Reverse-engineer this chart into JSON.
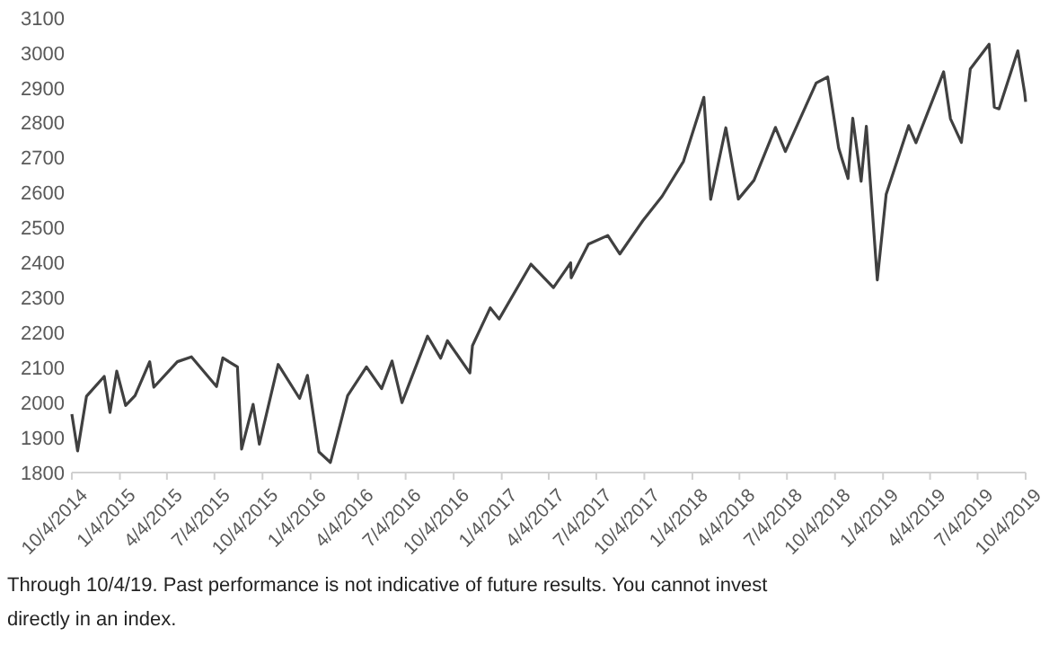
{
  "chart_data": {
    "type": "line",
    "grid": false,
    "marker": "none",
    "line_style": "solid",
    "x": [
      "2014-10-04",
      "2014-10-15",
      "2014-11-01",
      "2014-12-05",
      "2014-12-16",
      "2014-12-29",
      "2015-01-15",
      "2015-02-02",
      "2015-03-02",
      "2015-03-10",
      "2015-04-24",
      "2015-05-21",
      "2015-07-08",
      "2015-07-20",
      "2015-08-17",
      "2015-08-25",
      "2015-09-16",
      "2015-09-28",
      "2015-11-03",
      "2015-12-14",
      "2015-12-29",
      "2016-01-20",
      "2016-02-11",
      "2016-03-15",
      "2016-04-20",
      "2016-05-19",
      "2016-06-08",
      "2016-06-27",
      "2016-08-15",
      "2016-09-09",
      "2016-09-22",
      "2016-11-04",
      "2016-11-09",
      "2016-12-13",
      "2016-12-30",
      "2017-03-01",
      "2017-04-13",
      "2017-05-16",
      "2017-05-17",
      "2017-06-19",
      "2017-07-26",
      "2017-08-18",
      "2017-10-01",
      "2017-11-07",
      "2017-12-18",
      "2018-01-26",
      "2018-02-08",
      "2018-03-09",
      "2018-04-02",
      "2018-05-02",
      "2018-06-12",
      "2018-07-01",
      "2018-08-29",
      "2018-09-20",
      "2018-10-11",
      "2018-10-29",
      "2018-11-07",
      "2018-11-23",
      "2018-12-03",
      "2018-12-24",
      "2019-01-10",
      "2019-02-22",
      "2019-03-08",
      "2019-04-30",
      "2019-05-13",
      "2019-06-03",
      "2019-06-20",
      "2019-07-26",
      "2019-08-05",
      "2019-08-14",
      "2019-09-19",
      "2019-10-02",
      "2019-10-04"
    ],
    "series": [
      {
        "color": "#404040",
        "values": [
          1967,
          1862,
          2018,
          2075,
          1972,
          2090,
          1992,
          2020,
          2117,
          2044,
          2117,
          2131,
          2046,
          2128,
          2102,
          1867,
          1995,
          1881,
          2109,
          2012,
          2078,
          1859,
          1829,
          2020,
          2102,
          2040,
          2119,
          2000,
          2190,
          2127,
          2177,
          2085,
          2163,
          2271,
          2239,
          2396,
          2329,
          2400,
          2357,
          2453,
          2478,
          2425,
          2520,
          2590,
          2690,
          2873,
          2581,
          2786,
          2582,
          2636,
          2787,
          2718,
          2914,
          2931,
          2728,
          2641,
          2813,
          2633,
          2790,
          2351,
          2596,
          2792,
          2743,
          2946,
          2812,
          2744,
          2954,
          3025,
          2845,
          2840,
          3006,
          2887,
          2860
        ]
      }
    ],
    "xlim": [
      "2014-10-04",
      "2019-10-04"
    ],
    "xticks": [
      {
        "value": "2014-10-04",
        "label": "10/4/2014"
      },
      {
        "value": "2015-01-04",
        "label": "1/4/2015"
      },
      {
        "value": "2015-04-04",
        "label": "4/4/2015"
      },
      {
        "value": "2015-07-04",
        "label": "7/4/2015"
      },
      {
        "value": "2015-10-04",
        "label": "10/4/2015"
      },
      {
        "value": "2016-01-04",
        "label": "1/4/2016"
      },
      {
        "value": "2016-04-04",
        "label": "4/4/2016"
      },
      {
        "value": "2016-07-04",
        "label": "7/4/2016"
      },
      {
        "value": "2016-10-04",
        "label": "10/4/2016"
      },
      {
        "value": "2017-01-04",
        "label": "1/4/2017"
      },
      {
        "value": "2017-04-04",
        "label": "4/4/2017"
      },
      {
        "value": "2017-07-04",
        "label": "7/4/2017"
      },
      {
        "value": "2017-10-04",
        "label": "10/4/2017"
      },
      {
        "value": "2018-01-04",
        "label": "1/4/2018"
      },
      {
        "value": "2018-04-04",
        "label": "4/4/2018"
      },
      {
        "value": "2018-07-04",
        "label": "7/4/2018"
      },
      {
        "value": "2018-10-04",
        "label": "10/4/2018"
      },
      {
        "value": "2019-01-04",
        "label": "1/4/2019"
      },
      {
        "value": "2019-04-04",
        "label": "4/4/2019"
      },
      {
        "value": "2019-07-04",
        "label": "7/4/2019"
      },
      {
        "value": "2019-10-04",
        "label": "10/4/2019"
      }
    ],
    "ylim": [
      1800,
      3100
    ],
    "yticks": [
      1800,
      1900,
      2000,
      2100,
      2200,
      2300,
      2400,
      2500,
      2600,
      2700,
      2800,
      2900,
      3000,
      3100
    ],
    "annotations": [
      "Through 10/4/19. Past performance is not indicative of future results. You cannot invest directly in an index."
    ]
  }
}
